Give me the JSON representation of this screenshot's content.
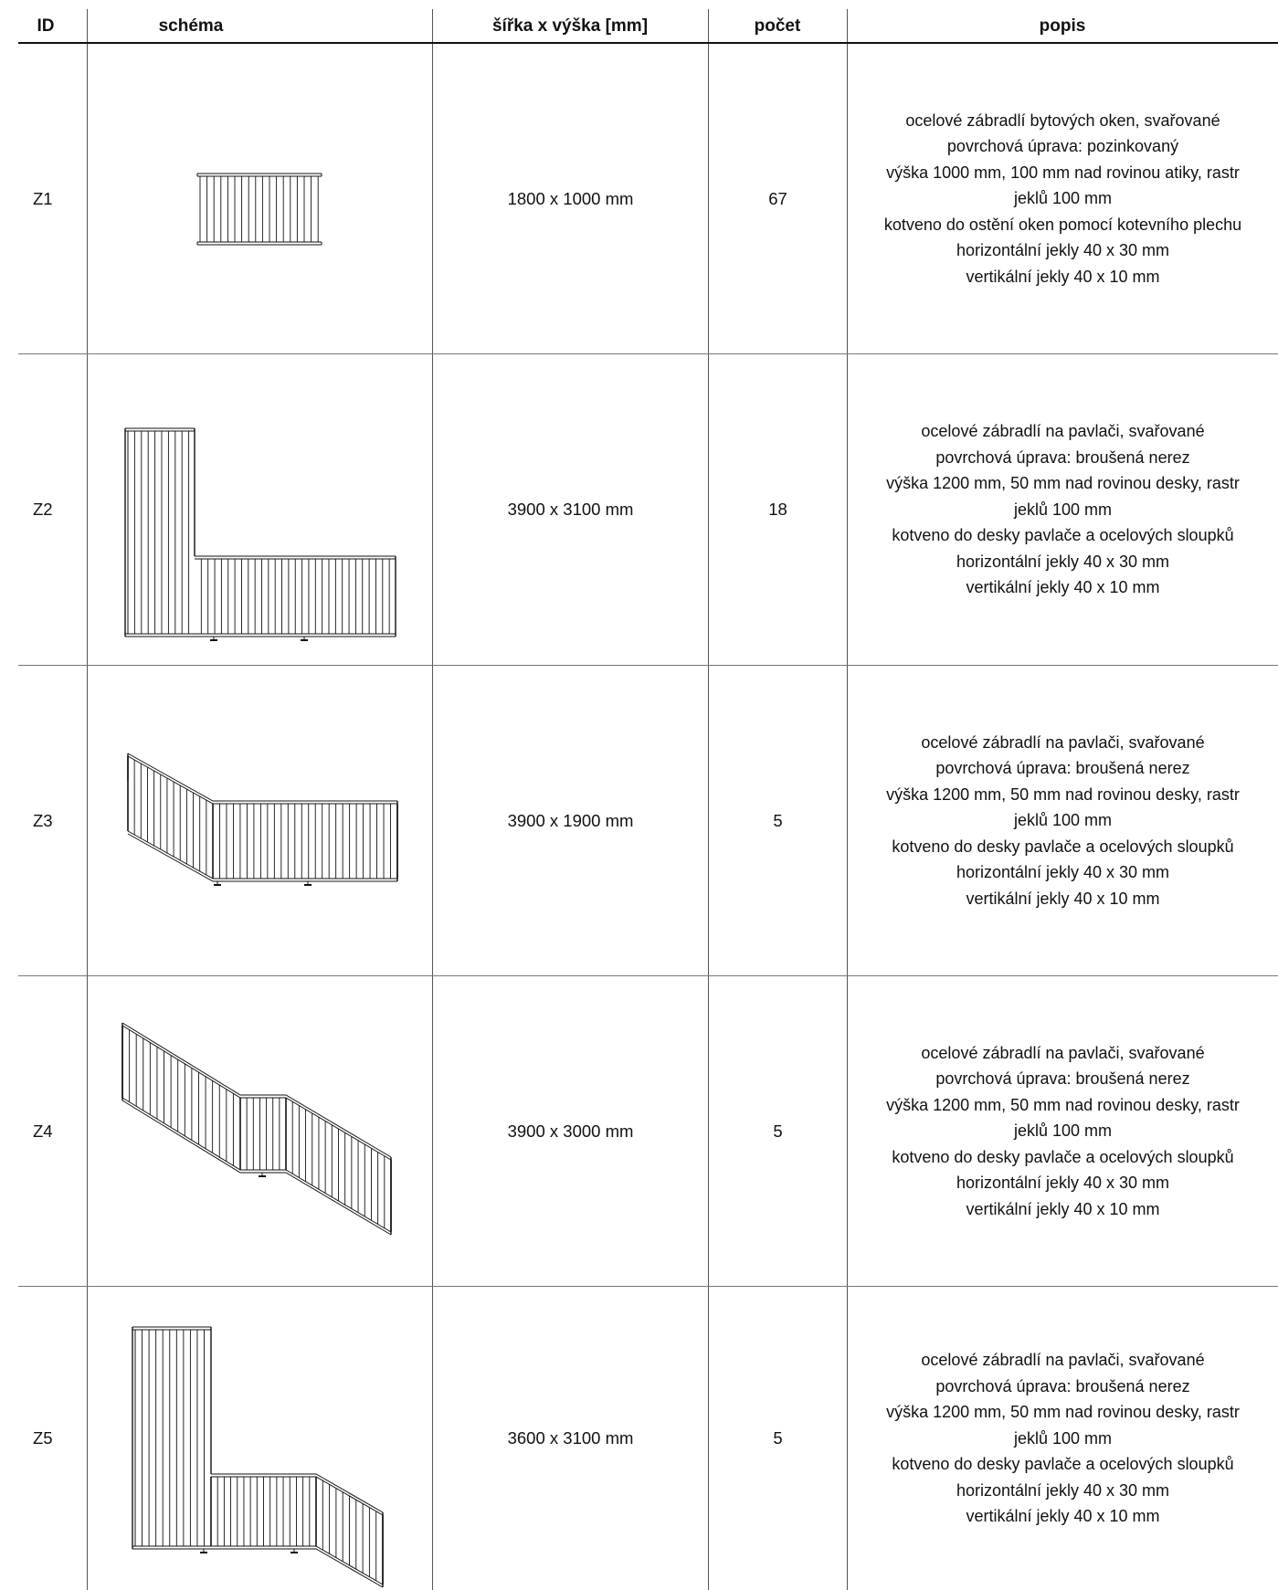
{
  "header": {
    "id": "ID",
    "schema": "schéma",
    "size": "šířka x výška [mm]",
    "count": "počet",
    "description": "popis"
  },
  "rows": [
    {
      "id": "Z1",
      "size": "1800 x 1000 mm",
      "count": "67",
      "description": [
        "ocelové zábradlí bytových oken, svařované",
        "povrchová úprava: pozinkovaný",
        "výška 1000 mm, 100 mm nad rovinou atiky, rastr",
        "jeklů 100 mm",
        "kotveno do ostění oken pomocí kotevního plechu",
        "horizontální jekly 40 x 30 mm",
        "vertikální jekly 40 x 10 mm"
      ]
    },
    {
      "id": "Z2",
      "size": "3900 x 3100 mm",
      "count": "18",
      "description": [
        "ocelové zábradlí na pavlači, svařované",
        "povrchová úprava: broušená nerez",
        "výška 1200 mm, 50 mm nad rovinou desky, rastr",
        "jeklů 100 mm",
        "kotveno do desky pavlače a ocelových sloupků",
        "horizontální jekly 40 x 30 mm",
        "vertikální jekly 40 x 10 mm"
      ]
    },
    {
      "id": "Z3",
      "size": "3900 x 1900 mm",
      "count": "5",
      "description": [
        "ocelové zábradlí na pavlači, svařované",
        "povrchová úprava: broušená nerez",
        "výška 1200 mm, 50 mm nad rovinou desky, rastr",
        "jeklů 100 mm",
        "kotveno do desky pavlače a ocelových sloupků",
        "horizontální jekly 40 x 30 mm",
        "vertikální jekly 40 x 10 mm"
      ]
    },
    {
      "id": "Z4",
      "size": "3900 x 3000 mm",
      "count": "5",
      "description": [
        "ocelové zábradlí na pavlači, svařované",
        "povrchová úprava: broušená nerez",
        "výška 1200 mm, 50 mm nad rovinou desky, rastr",
        "jeklů 100 mm",
        "kotveno do desky pavlače a ocelových sloupků",
        "horizontální jekly 40 x 30 mm",
        "vertikální jekly 40 x 10 mm"
      ]
    },
    {
      "id": "Z5",
      "size": "3600 x 3100 mm",
      "count": "5",
      "description": [
        "ocelové zábradlí na pavlači, svařované",
        "povrchová úprava: broušená nerez",
        "výška 1200 mm, 50 mm nad rovinou desky, rastr",
        "jeklů 100 mm",
        "kotveno do desky pavlače a ocelových sloupků",
        "horizontální jekly 40 x 30 mm",
        "vertikální jekly 40 x 10 mm"
      ]
    }
  ]
}
